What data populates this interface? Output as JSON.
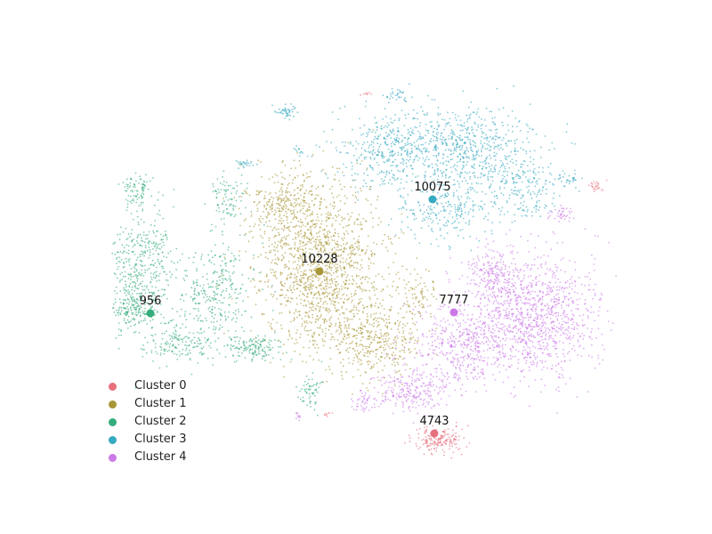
{
  "chart_data": {
    "type": "scatter",
    "title": "",
    "xlabel": "",
    "ylabel": "",
    "axes_visible": false,
    "grid": false,
    "legend_position": "bottom-left",
    "series": [
      {
        "name": "Cluster 0",
        "color": "#e8707d",
        "centroid": {
          "x": 488,
          "y": 487,
          "label": "4743"
        }
      },
      {
        "name": "Cluster 1",
        "color": "#a89636",
        "centroid": {
          "x": 359,
          "y": 305,
          "label": "10228"
        }
      },
      {
        "name": "Cluster 2",
        "color": "#34ac7c",
        "centroid": {
          "x": 169,
          "y": 352,
          "label": "956"
        }
      },
      {
        "name": "Cluster 3",
        "color": "#35a9c0",
        "centroid": {
          "x": 486,
          "y": 224,
          "label": "10075"
        }
      },
      {
        "name": "Cluster 4",
        "color": "#cc79e8",
        "centroid": {
          "x": 510,
          "y": 351,
          "label": "7777"
        }
      }
    ]
  }
}
